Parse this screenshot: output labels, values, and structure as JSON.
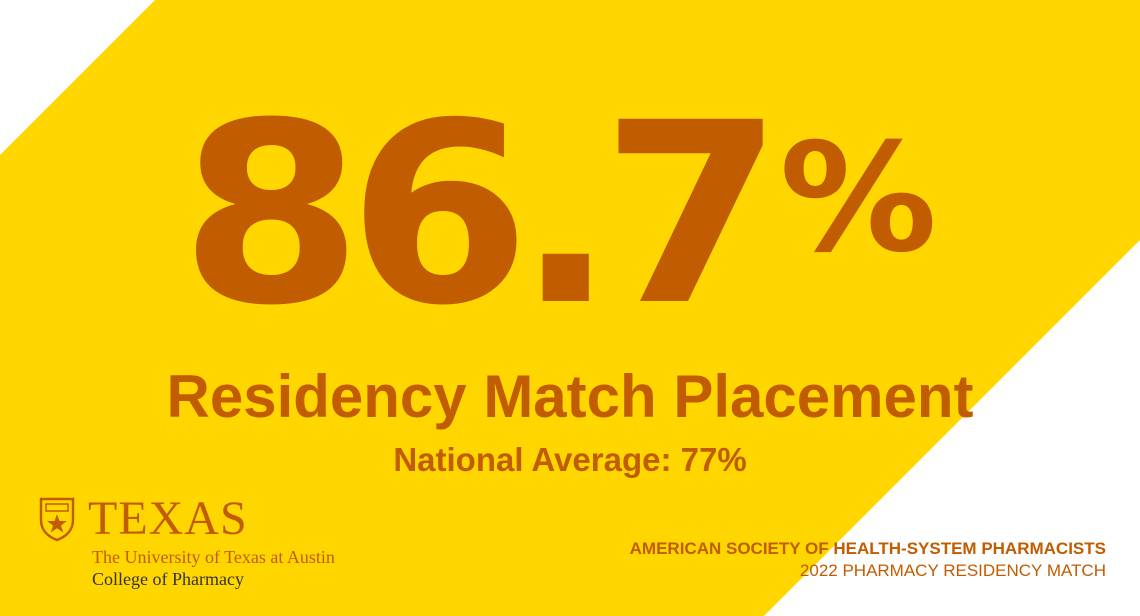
{
  "colors": {
    "background": "#FFFFFF",
    "band": "#FFD600",
    "accent": "#C15C00",
    "secondary_text": "#333333"
  },
  "stat": {
    "value": "86.7",
    "unit": "%"
  },
  "headline": "Residency Match Placement",
  "subheadline": "National Average: 77%",
  "logo": {
    "icon": "shield-icon",
    "wordmark": "TEXAS",
    "university": "The University of Texas at Austin",
    "college": "College of Pharmacy"
  },
  "source": {
    "organization": "AMERICAN SOCIETY OF HEALTH-SYSTEM PHARMACISTS",
    "event": "2022 PHARMACY RESIDENCY MATCH"
  }
}
